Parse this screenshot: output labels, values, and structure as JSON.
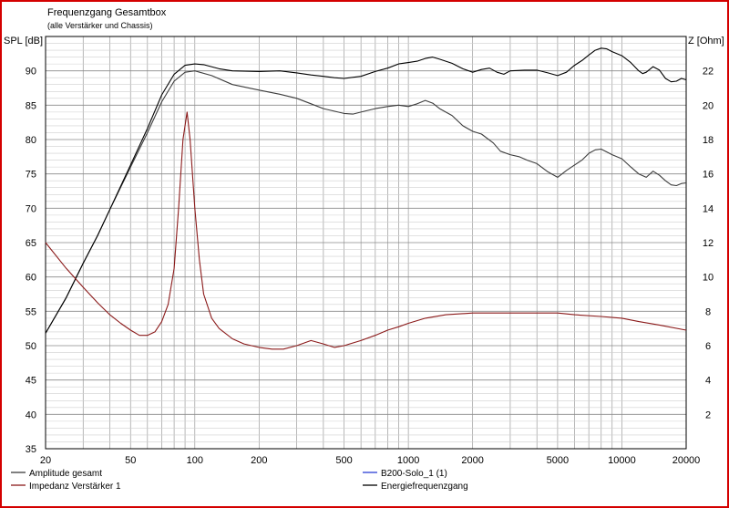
{
  "colors": {
    "frame": "#d40000",
    "amplitude": "#3c3c3c",
    "impedance": "#8b1a1a",
    "solo": "#2b3fd6",
    "energy": "#000000",
    "grid": "#9a9a9a"
  },
  "chart_data": {
    "type": "line",
    "title": "Frequenzgang Gesamtbox",
    "subtitle": "(alle Verstärker und Chassis)",
    "ylabel_left": "SPL [dB]",
    "ylabel_right": "Z [Ohm]",
    "x_scale": "log",
    "xlim": [
      20,
      20000
    ],
    "ylim_left": [
      35,
      95
    ],
    "ylim_right": [
      0,
      24
    ],
    "x_ticks": [
      20,
      50,
      100,
      200,
      500,
      1000,
      2000,
      5000,
      10000,
      20000
    ],
    "x_tick_labels": [
      "20",
      "50",
      "100",
      "200",
      "500",
      "1000",
      "2000",
      "5000",
      "10000",
      "20000"
    ],
    "y_left_ticks": [
      35,
      40,
      45,
      50,
      55,
      60,
      65,
      70,
      75,
      80,
      85,
      90
    ],
    "y_right_ticks": [
      2,
      4,
      6,
      8,
      10,
      12,
      14,
      16,
      18,
      20,
      22
    ],
    "grid": true,
    "legend": [
      {
        "name": "Amplitude gesamt",
        "color": "#3c3c3c"
      },
      {
        "name": "Impedanz Verstärker 1",
        "color": "#8b1a1a"
      },
      {
        "name": "B200-Solo_1 (1)",
        "color": "#2b3fd6"
      },
      {
        "name": "Energiefrequenzgang",
        "color": "#000000"
      }
    ],
    "series": [
      {
        "name": "Amplitude gesamt",
        "axis": "left",
        "points": [
          [
            20,
            51.8
          ],
          [
            25,
            57
          ],
          [
            30,
            62
          ],
          [
            35,
            66
          ],
          [
            40,
            69.8
          ],
          [
            50,
            76
          ],
          [
            60,
            81
          ],
          [
            70,
            85.5
          ],
          [
            80,
            88.5
          ],
          [
            90,
            89.8
          ],
          [
            100,
            90
          ],
          [
            120,
            89.3
          ],
          [
            150,
            88
          ],
          [
            200,
            87.2
          ],
          [
            250,
            86.6
          ],
          [
            300,
            86
          ],
          [
            350,
            85.2
          ],
          [
            400,
            84.5
          ],
          [
            500,
            83.8
          ],
          [
            550,
            83.7
          ],
          [
            600,
            84
          ],
          [
            700,
            84.5
          ],
          [
            800,
            84.8
          ],
          [
            900,
            85
          ],
          [
            1000,
            84.8
          ],
          [
            1100,
            85.2
          ],
          [
            1200,
            85.7
          ],
          [
            1300,
            85.3
          ],
          [
            1400,
            84.5
          ],
          [
            1600,
            83.5
          ],
          [
            1800,
            82
          ],
          [
            2000,
            81.2
          ],
          [
            2200,
            80.8
          ],
          [
            2500,
            79.5
          ],
          [
            2700,
            78.3
          ],
          [
            3000,
            77.8
          ],
          [
            3300,
            77.5
          ],
          [
            3600,
            77
          ],
          [
            4000,
            76.5
          ],
          [
            4500,
            75.3
          ],
          [
            5000,
            74.5
          ],
          [
            5500,
            75.5
          ],
          [
            6000,
            76.3
          ],
          [
            6500,
            77
          ],
          [
            7000,
            78
          ],
          [
            7500,
            78.5
          ],
          [
            8000,
            78.6
          ],
          [
            8500,
            78.2
          ],
          [
            9000,
            77.8
          ],
          [
            10000,
            77.2
          ],
          [
            11000,
            76
          ],
          [
            12000,
            75
          ],
          [
            13000,
            74.5
          ],
          [
            14000,
            75.4
          ],
          [
            15000,
            74.8
          ],
          [
            16000,
            74
          ],
          [
            17000,
            73.4
          ],
          [
            18000,
            73.3
          ],
          [
            19000,
            73.6
          ],
          [
            20000,
            73.7
          ]
        ]
      },
      {
        "name": "Energiefrequenzgang",
        "axis": "left",
        "points": [
          [
            20,
            51.8
          ],
          [
            25,
            57
          ],
          [
            30,
            62
          ],
          [
            35,
            66
          ],
          [
            40,
            69.8
          ],
          [
            50,
            76.3
          ],
          [
            60,
            81.6
          ],
          [
            70,
            86.5
          ],
          [
            80,
            89.5
          ],
          [
            90,
            90.8
          ],
          [
            100,
            91
          ],
          [
            110,
            90.9
          ],
          [
            130,
            90.3
          ],
          [
            150,
            90
          ],
          [
            200,
            89.9
          ],
          [
            250,
            90
          ],
          [
            300,
            89.7
          ],
          [
            350,
            89.4
          ],
          [
            400,
            89.2
          ],
          [
            450,
            89
          ],
          [
            500,
            88.9
          ],
          [
            600,
            89.2
          ],
          [
            700,
            89.9
          ],
          [
            800,
            90.4
          ],
          [
            900,
            91
          ],
          [
            1000,
            91.2
          ],
          [
            1100,
            91.4
          ],
          [
            1200,
            91.8
          ],
          [
            1300,
            92
          ],
          [
            1400,
            91.7
          ],
          [
            1600,
            91.1
          ],
          [
            1800,
            90.3
          ],
          [
            2000,
            89.8
          ],
          [
            2200,
            90.2
          ],
          [
            2400,
            90.4
          ],
          [
            2600,
            89.8
          ],
          [
            2800,
            89.5
          ],
          [
            3000,
            90
          ],
          [
            3500,
            90.1
          ],
          [
            4000,
            90.1
          ],
          [
            4500,
            89.7
          ],
          [
            5000,
            89.3
          ],
          [
            5500,
            89.8
          ],
          [
            6000,
            90.8
          ],
          [
            6500,
            91.5
          ],
          [
            7000,
            92.3
          ],
          [
            7500,
            93
          ],
          [
            8000,
            93.3
          ],
          [
            8500,
            93.2
          ],
          [
            9000,
            92.8
          ],
          [
            10000,
            92.2
          ],
          [
            11000,
            91.2
          ],
          [
            12000,
            90
          ],
          [
            12500,
            89.6
          ],
          [
            13000,
            89.8
          ],
          [
            14000,
            90.6
          ],
          [
            15000,
            90.1
          ],
          [
            16000,
            88.9
          ],
          [
            17000,
            88.4
          ],
          [
            18000,
            88.5
          ],
          [
            19000,
            88.9
          ],
          [
            20000,
            88.7
          ]
        ]
      },
      {
        "name": "Impedanz Verstärker 1",
        "axis": "right",
        "points": [
          [
            20,
            12
          ],
          [
            25,
            10.5
          ],
          [
            30,
            9.4
          ],
          [
            35,
            8.5
          ],
          [
            40,
            7.8
          ],
          [
            45,
            7.3
          ],
          [
            50,
            6.9
          ],
          [
            55,
            6.6
          ],
          [
            60,
            6.6
          ],
          [
            65,
            6.8
          ],
          [
            70,
            7.4
          ],
          [
            75,
            8.4
          ],
          [
            80,
            10.5
          ],
          [
            84,
            14
          ],
          [
            88,
            18
          ],
          [
            92,
            19.6
          ],
          [
            95,
            18
          ],
          [
            100,
            14
          ],
          [
            105,
            11
          ],
          [
            110,
            9
          ],
          [
            120,
            7.6
          ],
          [
            130,
            7
          ],
          [
            150,
            6.4
          ],
          [
            170,
            6.1
          ],
          [
            200,
            5.9
          ],
          [
            230,
            5.8
          ],
          [
            260,
            5.8
          ],
          [
            300,
            6
          ],
          [
            350,
            6.3
          ],
          [
            400,
            6.1
          ],
          [
            450,
            5.9
          ],
          [
            500,
            6
          ],
          [
            600,
            6.3
          ],
          [
            700,
            6.6
          ],
          [
            800,
            6.9
          ],
          [
            900,
            7.1
          ],
          [
            1000,
            7.3
          ],
          [
            1200,
            7.6
          ],
          [
            1500,
            7.8
          ],
          [
            2000,
            7.9
          ],
          [
            2500,
            7.9
          ],
          [
            3000,
            7.9
          ],
          [
            4000,
            7.9
          ],
          [
            5000,
            7.9
          ],
          [
            6000,
            7.8
          ],
          [
            8000,
            7.7
          ],
          [
            10000,
            7.6
          ],
          [
            12000,
            7.4
          ],
          [
            15000,
            7.2
          ],
          [
            20000,
            6.9
          ]
        ]
      }
    ]
  }
}
